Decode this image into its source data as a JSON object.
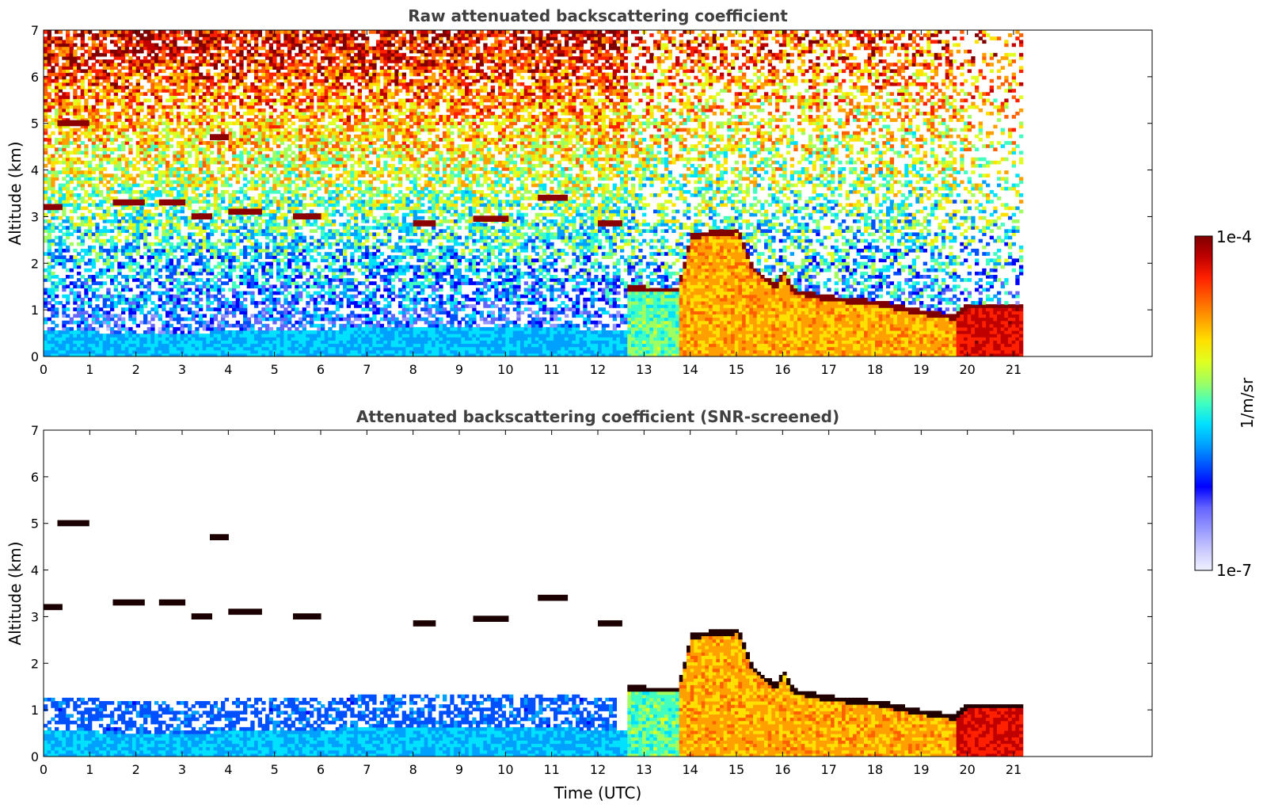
{
  "chart_data": [
    {
      "type": "heatmap",
      "title": "Raw attenuated backscattering coefficient",
      "ylabel": "Altitude (km)",
      "xlabel": "",
      "xlim": [
        0,
        24
      ],
      "ylim": [
        0,
        7
      ],
      "x_ticks": [
        0,
        1,
        2,
        3,
        4,
        5,
        6,
        7,
        8,
        9,
        10,
        11,
        12,
        13,
        14,
        15,
        16,
        17,
        18,
        19,
        20,
        21
      ],
      "y_ticks": [
        0,
        1,
        2,
        3,
        4,
        5,
        6,
        7
      ],
      "data_end_time": 21.15,
      "screened": false
    },
    {
      "type": "heatmap",
      "title": "Attenuated backscattering coefficient (SNR-screened)",
      "ylabel": "Altitude (km)",
      "xlabel": "Time (UTC)",
      "xlim": [
        0,
        24
      ],
      "ylim": [
        0,
        7
      ],
      "x_ticks": [
        0,
        1,
        2,
        3,
        4,
        5,
        6,
        7,
        8,
        9,
        10,
        11,
        12,
        13,
        14,
        15,
        16,
        17,
        18,
        19,
        20,
        21
      ],
      "y_ticks": [
        0,
        1,
        2,
        3,
        4,
        5,
        6,
        7
      ],
      "data_end_time": 21.15,
      "screened": true
    }
  ],
  "colorbar": {
    "label": "1/m/sr",
    "max_label": "1e-4",
    "min_label": "1e-7",
    "colormap": [
      "#f0f0ff",
      "#c8c8ff",
      "#9696ff",
      "#6464ff",
      "#0000ff",
      "#0050ff",
      "#00a0ff",
      "#00e0ff",
      "#40ffc0",
      "#a0ff60",
      "#e0ff20",
      "#ffe000",
      "#ffa000",
      "#ff6000",
      "#ff2000",
      "#c00000",
      "#800000"
    ]
  },
  "features": {
    "boundary_layer_top": [
      [
        0,
        0.55
      ],
      [
        2,
        0.45
      ],
      [
        4,
        0.5
      ],
      [
        6,
        0.55
      ],
      [
        8,
        0.6
      ],
      [
        10,
        0.6
      ],
      [
        12,
        0.55
      ],
      [
        12.6,
        0.5
      ]
    ],
    "cloud_layer": [
      [
        12.1,
        1.45
      ],
      [
        13.0,
        1.35
      ],
      [
        13.7,
        1.35
      ],
      [
        14,
        2.5
      ],
      [
        15,
        2.6
      ],
      [
        15.3,
        1.8
      ],
      [
        15.8,
        1.4
      ],
      [
        16.0,
        1.7
      ],
      [
        16.2,
        1.3
      ],
      [
        17,
        1.15
      ],
      [
        18,
        1.05
      ],
      [
        19,
        0.85
      ],
      [
        19.7,
        0.75
      ],
      [
        20.0,
        1.0
      ]
    ],
    "high_cloud_patches": [
      [
        0,
        3.2
      ],
      [
        1.5,
        3.3
      ],
      [
        2.5,
        3.3
      ],
      [
        3.2,
        3.0
      ],
      [
        4.0,
        3.1
      ],
      [
        5.4,
        3.0
      ],
      [
        8.0,
        2.85
      ],
      [
        9.3,
        2.95
      ],
      [
        10.7,
        3.4
      ],
      [
        12.0,
        2.85
      ],
      [
        3.6,
        4.7
      ],
      [
        0.3,
        5.0
      ]
    ]
  }
}
